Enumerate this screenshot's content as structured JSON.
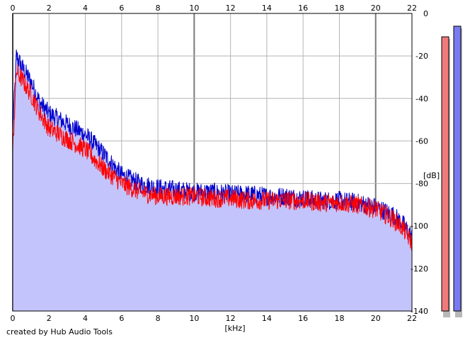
{
  "chart_data": {
    "type": "area",
    "xlabel": "[kHz]",
    "ylabel": "[dB]",
    "xlim": [
      0,
      22
    ],
    "ylim": [
      -140,
      0
    ],
    "x_ticks": [
      "0",
      "2",
      "4",
      "6",
      "8",
      "10",
      "12",
      "14",
      "16",
      "18",
      "20",
      "22"
    ],
    "y_ticks": [
      "0",
      "-20",
      "-40",
      "-60",
      "-80",
      "-100",
      "-120",
      "-140"
    ],
    "grid": true,
    "series": [
      {
        "color": "#0000cc",
        "fill": "#c4c4fc",
        "x": [
          0,
          0.2,
          0.5,
          1,
          1.5,
          2,
          3,
          4,
          5,
          6,
          7,
          8,
          9,
          10,
          11,
          12,
          13,
          14,
          15,
          16,
          17,
          18,
          19,
          20,
          21,
          21.5,
          22
        ],
        "values": [
          -55,
          -20,
          -25,
          -32,
          -42,
          -47,
          -52,
          -57,
          -66,
          -76,
          -80,
          -82,
          -83,
          -84,
          -84,
          -85,
          -85,
          -86,
          -86,
          -87,
          -88,
          -88,
          -89,
          -91,
          -95,
          -99,
          -105
        ]
      },
      {
        "color": "#ff0000",
        "x": [
          0,
          0.2,
          0.5,
          1,
          1.5,
          2,
          3,
          4,
          5,
          6,
          7,
          8,
          9,
          10,
          11,
          12,
          13,
          14,
          15,
          16,
          17,
          18,
          19,
          20,
          21,
          21.5,
          22
        ],
        "values": [
          -65,
          -27,
          -31,
          -38,
          -47,
          -54,
          -59,
          -64,
          -73,
          -80,
          -84,
          -86,
          -86,
          -86,
          -87,
          -87,
          -88,
          -88,
          -88,
          -88,
          -89,
          -89,
          -90,
          -92,
          -97,
          -101,
          -108
        ]
      }
    ],
    "level_meters": [
      {
        "color": "#f07a7a",
        "level_db": -11
      },
      {
        "color": "#7a7af0",
        "level_db": -6
      }
    ]
  },
  "credit": "created by Hub Audio Tools"
}
